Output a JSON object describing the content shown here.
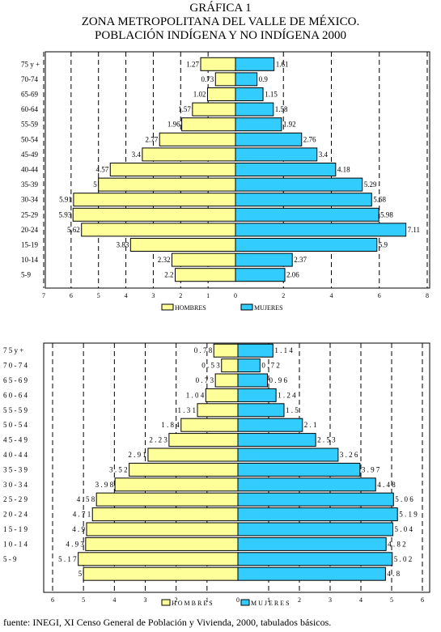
{
  "page": {
    "titles": [
      "GRÁFICA 1",
      "ZONA METROPOLITANA DEL VALLE DE MÉXICO.",
      "POBLACIÓN INDÍGENA Y NO INDÍGENA 2000"
    ],
    "source": "fuente: INEGI, XI Censo General de Población y Vivienda, 2000, tabulados básicos."
  },
  "colors": {
    "hombres": "#ffff99",
    "mujeres": "#33ccff",
    "stroke": "#000000"
  },
  "chart_data": [
    {
      "type": "bar",
      "orientation": "horizontal",
      "layout": "population-pyramid",
      "categories": [
        "75 y +",
        "70-74",
        "65-69",
        "60-64",
        "55-59",
        "50-54",
        "45-49",
        "40-44",
        "35-39",
        "30-34",
        "25-29",
        "20-24",
        "15-19",
        "10-14",
        "5-9"
      ],
      "series": [
        {
          "name": "HOMBRES",
          "side": "left",
          "values": [
            1.27,
            0.73,
            1.02,
            1.57,
            1.96,
            2.77,
            3.4,
            4.57,
            5,
            5.91,
            5.93,
            5.62,
            3.83,
            2.32,
            2.2
          ]
        },
        {
          "name": "MUJERES",
          "side": "right",
          "values": [
            1.61,
            0.9,
            1.15,
            1.58,
            1.92,
            2.76,
            3.4,
            4.18,
            5.29,
            5.68,
            5.98,
            7.11,
            5.9,
            2.37,
            2.06
          ]
        }
      ],
      "left_ticks": [
        "7",
        "6",
        "5",
        "4",
        "3",
        "2",
        "1",
        "0"
      ],
      "right_ticks": [
        "0",
        "2",
        "4",
        "6",
        "8"
      ],
      "left_max": 7,
      "right_max": 8,
      "legend_position": "bottom",
      "grid": "dashed vertical lines"
    },
    {
      "type": "bar",
      "orientation": "horizontal",
      "layout": "population-pyramid",
      "categories": [
        "7 5  y  +",
        "7 0 - 7 4",
        "6 5 - 6 9",
        "6 0 - 6 4",
        "5 5 - 5 9",
        "5 0 - 5 4",
        "4 5 - 4 9",
        "4 0 - 4 4",
        "3 5 - 3 9",
        "3 0 - 3 4",
        "2 5 - 2 9",
        "2 0 - 2 4",
        "1 5 - 1 9",
        "1 0 - 1 4",
        "5 - 9",
        ""
      ],
      "series": [
        {
          "name": "H O M B R E S",
          "side": "left",
          "values": [
            0.78,
            0.53,
            0.73,
            1.04,
            1.31,
            1.84,
            2.23,
            2.91,
            3.52,
            3.98,
            4.58,
            4.71,
            4.9,
            4.93,
            5.17,
            5
          ],
          "labels": [
            "0 . 7 8",
            "0 . 5 3",
            "0 . 7 3",
            "1 . 0 4",
            "1 . 3 1",
            "1 . 8 4",
            "2 . 2 3",
            "2 . 9 1",
            "3 . 5 2",
            "3 . 9 8",
            "4 . 5 8",
            "4 . 7 1",
            "4 . 9",
            "4 . 9 3",
            "5 . 1 7",
            "5"
          ]
        },
        {
          "name": "M U J E R E S",
          "side": "right",
          "values": [
            1.14,
            0.72,
            0.96,
            1.24,
            1.5,
            2.1,
            2.53,
            3.26,
            3.97,
            4.48,
            5.06,
            5.19,
            5.04,
            4.82,
            5.02,
            4.8
          ],
          "labels": [
            "1 . 1 4",
            "0 . 7 2",
            "0 . 9 6",
            "1 . 2 4",
            "1 . 5",
            "2 . 1",
            "2 . 5 3",
            "3 . 2 6",
            "3 . 9 7",
            "4 . 4 8",
            "5 . 0 6",
            "5 . 1 9",
            "5 . 0 4",
            "4 . 8 2",
            "5 . 0 2",
            "4 . 8"
          ]
        }
      ],
      "left_ticks": [
        "6",
        "5",
        "4",
        "3",
        "2",
        "1",
        "0"
      ],
      "right_ticks": [
        "0",
        "1",
        "2",
        "3",
        "4",
        "5",
        "6"
      ],
      "left_max": 6,
      "right_max": 6,
      "legend_position": "bottom",
      "grid": "dashed vertical lines"
    }
  ]
}
